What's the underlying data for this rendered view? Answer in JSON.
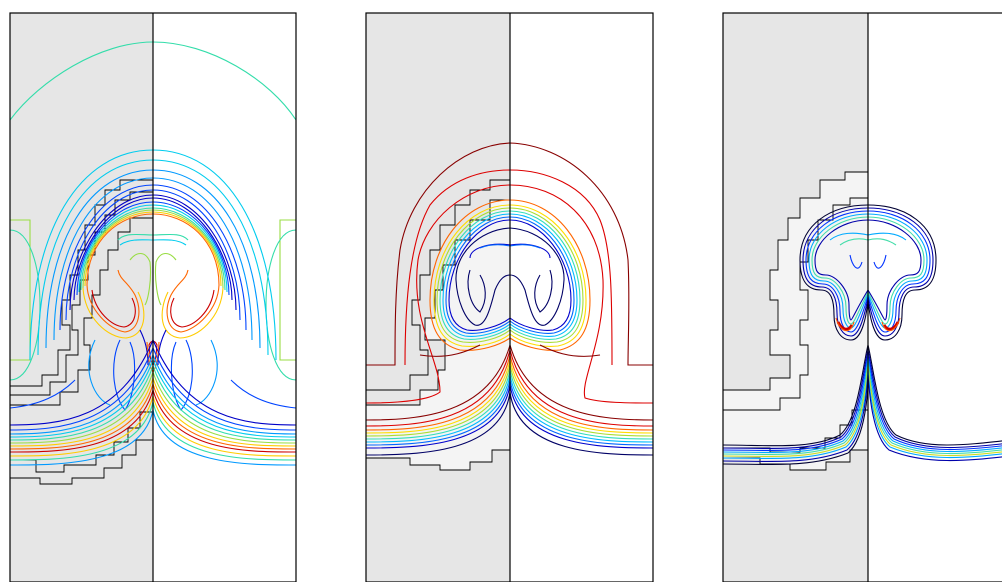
{
  "figure": {
    "panels": [
      {
        "id": "a",
        "contour_palette": [
          "#0000c8",
          "#0044ff",
          "#0099ff",
          "#00ccee",
          "#33ddaa",
          "#99dd44",
          "#ffcc00",
          "#ff6600",
          "#cc0000"
        ]
      },
      {
        "id": "b",
        "contour_palette": [
          "#000066",
          "#0000cc",
          "#0066ff",
          "#00bbff",
          "#33ddbb",
          "#aadd33",
          "#ffdd00",
          "#ff6600",
          "#dd0000",
          "#880000"
        ]
      },
      {
        "id": "c",
        "contour_palette": [
          "#000033",
          "#0000aa",
          "#0033ff",
          "#00aaff",
          "#44ddaa",
          "#ccdd22",
          "#ff5500",
          "#cc0000"
        ]
      }
    ],
    "colors": {
      "refined_region": "#e6e6e6",
      "inner_refined": "#f4f4f4",
      "border": "#000000",
      "background": "#ffffff"
    }
  }
}
